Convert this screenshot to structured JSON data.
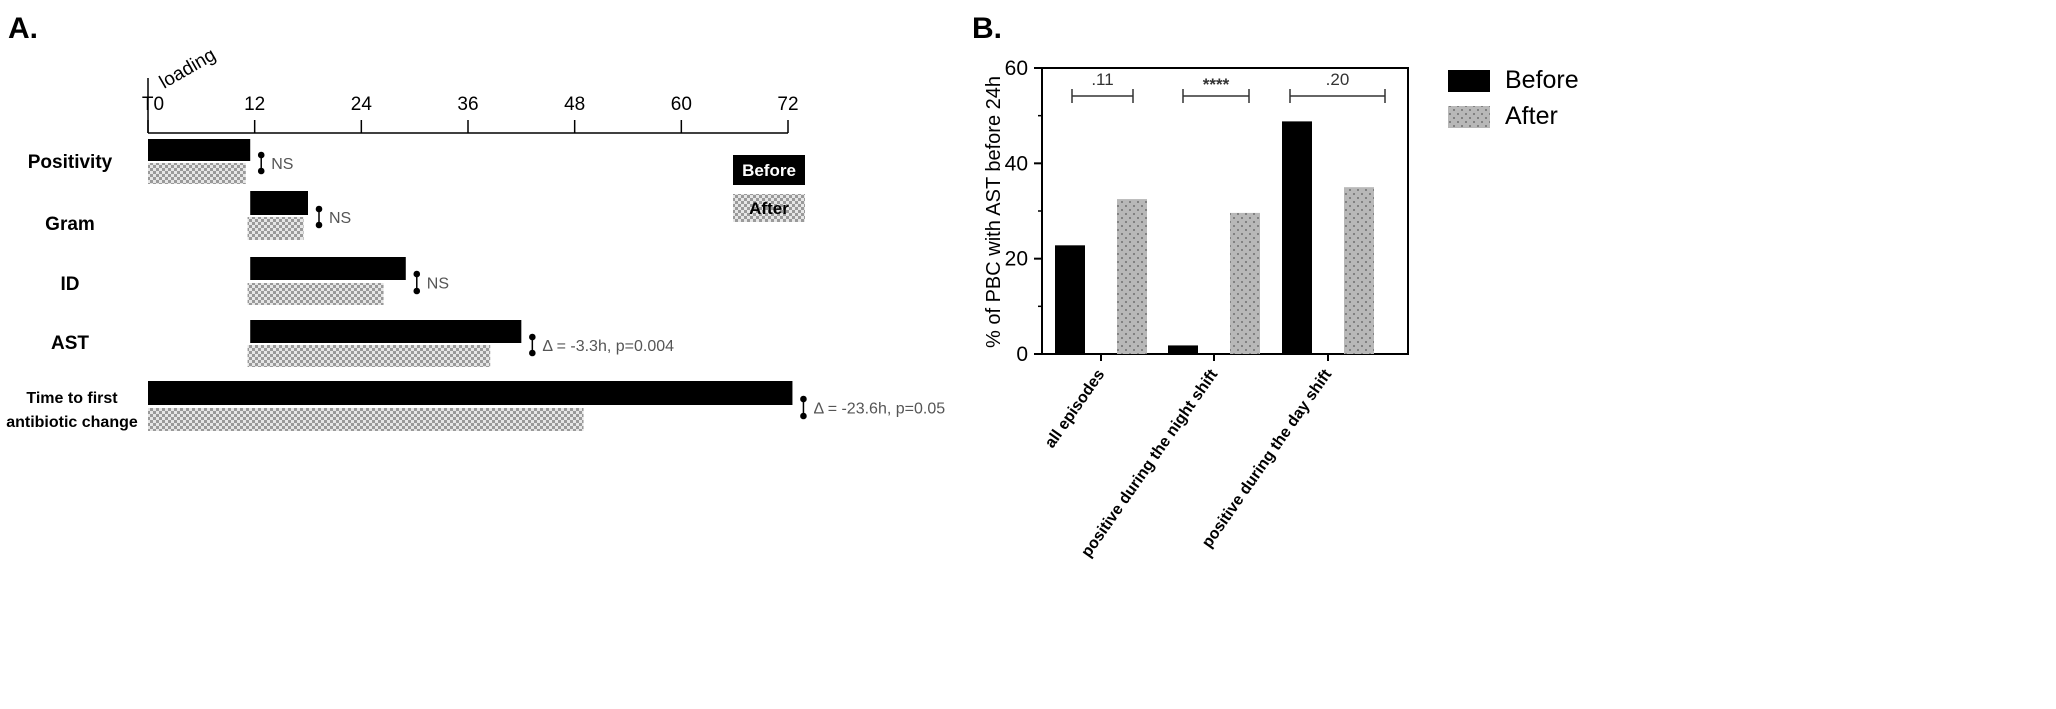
{
  "chart_data": [
    {
      "panel": "A.",
      "type": "bar",
      "orientation": "horizontal",
      "axis_note": "loading",
      "x_ticks": [
        "T0",
        "12",
        "24",
        "36",
        "48",
        "60",
        "72"
      ],
      "xlim": [
        0,
        72
      ],
      "categories": [
        "Positivity",
        "Gram",
        "ID",
        "AST",
        "Time to first antibiotic change"
      ],
      "category_lines": [
        [
          "Positivity"
        ],
        [
          "Gram"
        ],
        [
          "ID"
        ],
        [
          "AST"
        ],
        [
          "Time to first",
          "antibiotic change"
        ]
      ],
      "series": [
        {
          "name": "Before",
          "color": "#000000",
          "start": [
            0,
            11.5,
            11.5,
            11.5,
            0
          ],
          "end": [
            11.5,
            18,
            29,
            42,
            72.5
          ]
        },
        {
          "name": "After",
          "color": "#c8c8c8",
          "start": [
            0,
            11.2,
            11.2,
            11.2,
            0
          ],
          "end": [
            11,
            17.5,
            26.5,
            38.5,
            49
          ]
        }
      ],
      "annotations": [
        "NS",
        "NS",
        "NS",
        "Δ = -3.3h, p=0.004",
        "Δ = -23.6h, p=0.05"
      ],
      "legend": [
        "Before",
        "After"
      ]
    },
    {
      "panel": "B.",
      "type": "bar",
      "categories": [
        "all episodes",
        "positive during the night shift",
        "positive during the day shift"
      ],
      "series": [
        {
          "name": "Before",
          "color": "#000000",
          "values": [
            22.8,
            1.8,
            48.8
          ]
        },
        {
          "name": "After",
          "color": "#b4b4b4",
          "values": [
            32.5,
            29.6,
            35
          ]
        }
      ],
      "ylabel": "% of PBC with AST before 24h",
      "ylim": [
        0,
        60
      ],
      "yticks": [
        "0",
        "20",
        "40",
        "60"
      ],
      "significance": [
        ".11",
        "****",
        ".20"
      ],
      "legend": [
        "Before",
        "After"
      ]
    }
  ]
}
